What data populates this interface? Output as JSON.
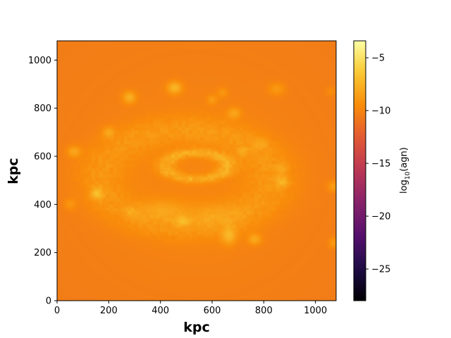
{
  "chart_data": {
    "type": "heatmap",
    "xlabel": "kpc",
    "ylabel": "kpc",
    "xlim": [
      0,
      1080
    ],
    "ylim": [
      0,
      1080
    ],
    "x_ticks": [
      0,
      200,
      400,
      600,
      800,
      1000
    ],
    "y_ticks": [
      0,
      200,
      400,
      600,
      800,
      1000
    ],
    "x_tick_labels": [
      "0",
      "200",
      "400",
      "600",
      "800",
      "1000"
    ],
    "y_tick_labels": [
      "0",
      "200",
      "400",
      "600",
      "800",
      "1000"
    ],
    "colorbar": {
      "label_prefix": "log",
      "label_sub": "10",
      "label_suffix": "(agn)",
      "range": [
        -28,
        -3.4
      ],
      "ticks": [
        -5,
        -10,
        -15,
        -20,
        -25
      ],
      "tick_labels": [
        "−5",
        "−10",
        "−15",
        "−20",
        "−25"
      ],
      "colormap": "inferno"
    },
    "field": {
      "background_level": -10.2,
      "blobs": [
        {
          "x": 540,
          "y": 560,
          "sx": 120,
          "sy": 55,
          "v": 2.6,
          "ring": true
        },
        {
          "x": 500,
          "y": 510,
          "sx": 330,
          "sy": 200,
          "v": 1.4,
          "ring": true
        },
        {
          "x": 280,
          "y": 845,
          "sx": 18,
          "sy": 18,
          "v": 2.5
        },
        {
          "x": 455,
          "y": 885,
          "sx": 20,
          "sy": 18,
          "v": 2.8
        },
        {
          "x": 600,
          "y": 835,
          "sx": 14,
          "sy": 14,
          "v": 1.4
        },
        {
          "x": 640,
          "y": 865,
          "sx": 14,
          "sy": 14,
          "v": 1.2
        },
        {
          "x": 685,
          "y": 780,
          "sx": 18,
          "sy": 16,
          "v": 1.8
        },
        {
          "x": 850,
          "y": 880,
          "sx": 22,
          "sy": 18,
          "v": 1.4
        },
        {
          "x": 200,
          "y": 700,
          "sx": 16,
          "sy": 16,
          "v": 1.7
        },
        {
          "x": 65,
          "y": 620,
          "sx": 18,
          "sy": 16,
          "v": 2.0
        },
        {
          "x": 155,
          "y": 445,
          "sx": 18,
          "sy": 18,
          "v": 2.3
        },
        {
          "x": 50,
          "y": 400,
          "sx": 16,
          "sy": 16,
          "v": 1.2
        },
        {
          "x": 285,
          "y": 370,
          "sx": 16,
          "sy": 16,
          "v": 1.1
        },
        {
          "x": 485,
          "y": 330,
          "sx": 18,
          "sy": 14,
          "v": 1.9
        },
        {
          "x": 665,
          "y": 270,
          "sx": 20,
          "sy": 26,
          "v": 2.4
        },
        {
          "x": 765,
          "y": 255,
          "sx": 18,
          "sy": 16,
          "v": 2.0
        },
        {
          "x": 870,
          "y": 495,
          "sx": 18,
          "sy": 18,
          "v": 1.7
        },
        {
          "x": 1070,
          "y": 475,
          "sx": 16,
          "sy": 16,
          "v": 1.6
        },
        {
          "x": 1070,
          "y": 240,
          "sx": 14,
          "sy": 16,
          "v": 1.5
        },
        {
          "x": 1060,
          "y": 870,
          "sx": 14,
          "sy": 14,
          "v": 0.9
        },
        {
          "x": 720,
          "y": 620,
          "sx": 14,
          "sy": 14,
          "v": 1.1
        },
        {
          "x": 410,
          "y": 380,
          "sx": 60,
          "sy": 30,
          "v": 1.3
        },
        {
          "x": 600,
          "y": 360,
          "sx": 80,
          "sy": 35,
          "v": 1.0
        },
        {
          "x": 790,
          "y": 650,
          "sx": 18,
          "sy": 16,
          "v": 1.2
        },
        {
          "x": 870,
          "y": 550,
          "sx": 16,
          "sy": 16,
          "v": 1.0
        }
      ]
    }
  }
}
